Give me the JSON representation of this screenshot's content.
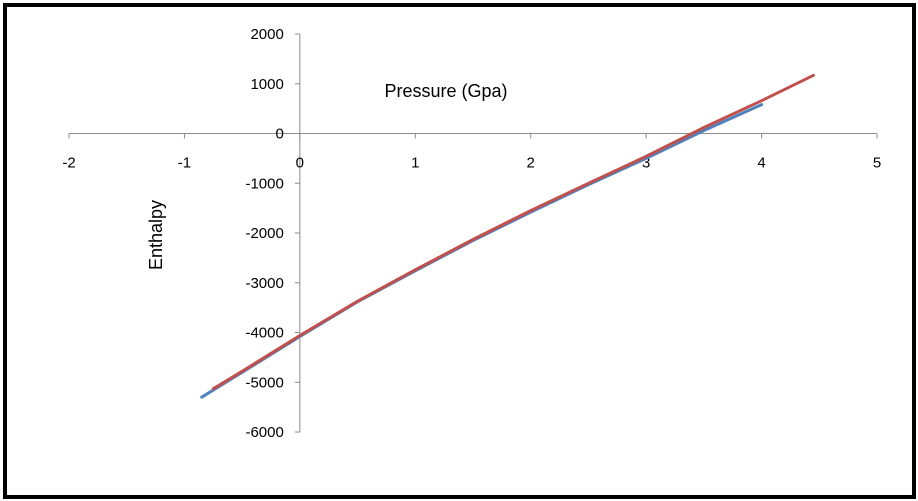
{
  "chart_data": {
    "type": "line",
    "xlabel": "Pressure (Gpa)",
    "ylabel": "Enthalpy",
    "xlim": [
      -2,
      5
    ],
    "ylim": [
      -6000,
      2000
    ],
    "x_ticks": [
      "-2",
      "-1",
      "0",
      "1",
      "2",
      "3",
      "4",
      "5"
    ],
    "y_ticks": [
      "2000",
      "1000",
      "0",
      "-1000",
      "-2000",
      "-3000",
      "-4000",
      "-5000",
      "-6000"
    ],
    "grid": false,
    "legend": "none",
    "series": [
      {
        "color": "#4f81bd",
        "x": [
          -0.85,
          -0.5,
          0,
          0.5,
          1,
          1.5,
          2,
          2.5,
          3,
          3.5,
          4
        ],
        "y": [
          -5300,
          -4800,
          -4080,
          -3380,
          -2760,
          -2150,
          -1580,
          -1030,
          -500,
          60,
          580
        ]
      },
      {
        "color": "#c0504d",
        "x": [
          -0.75,
          -0.5,
          0,
          0.5,
          1,
          1.5,
          2,
          2.5,
          3,
          3.5,
          4,
          4.45
        ],
        "y": [
          -5130,
          -4780,
          -4060,
          -3370,
          -2740,
          -2130,
          -1550,
          -1000,
          -460,
          120,
          660,
          1170
        ]
      }
    ]
  }
}
